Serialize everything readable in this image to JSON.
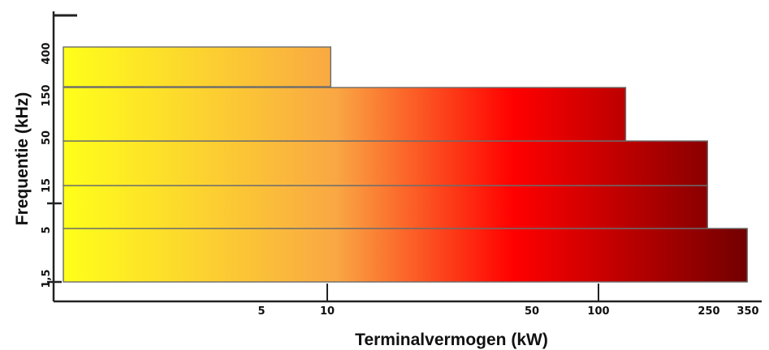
{
  "chart_data": {
    "type": "bar",
    "orientation": "horizontal",
    "title": "",
    "xlabel": "Terminalvermogen (kW)",
    "ylabel": "Frequentie (kHz)",
    "x_scale": "log",
    "x_ticks": [
      "5",
      "10",
      "50",
      "100",
      "250",
      "350"
    ],
    "y_ticks": [
      "1,5",
      "5",
      "15",
      "50",
      "150",
      "400"
    ],
    "bars": [
      {
        "frequency_band": "1,5 - 5 kHz",
        "max_power_kw": 350
      },
      {
        "frequency_band": "5 - 15 kHz",
        "max_power_kw": 250
      },
      {
        "frequency_band": "15 - 50 kHz",
        "max_power_kw": 250
      },
      {
        "frequency_band": "50 - 150 kHz",
        "max_power_kw": 125
      },
      {
        "frequency_band": "150 - 400 kHz",
        "max_power_kw": 10.3
      }
    ],
    "gradient_colors": [
      "#ffff1a",
      "#f9a744",
      "#ff0000",
      "#730000"
    ],
    "grid": false,
    "legend": "none"
  }
}
